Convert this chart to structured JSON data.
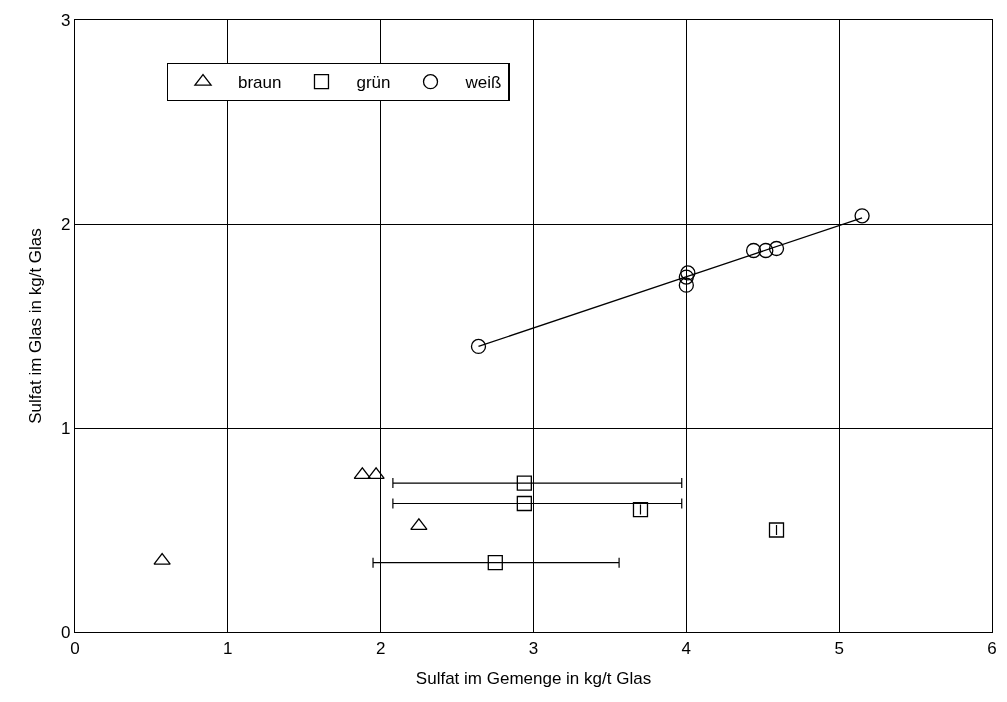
{
  "chart_data": {
    "type": "scatter",
    "xlabel": "Sulfat im Gemenge in kg/t Glas",
    "ylabel": "Sulfat im Glas in kg/t Glas",
    "xlim": [
      0,
      6
    ],
    "ylim": [
      0,
      3
    ],
    "xticks": [
      0,
      1,
      2,
      3,
      4,
      5,
      6
    ],
    "yticks": [
      0,
      1,
      2,
      3
    ],
    "grid": true,
    "legend": "top left",
    "series": [
      {
        "name": "braun",
        "color": "#000000",
        "marker": "triangle",
        "x": [
          0.57,
          1.88,
          1.97,
          2.25
        ],
        "values": [
          0.35,
          0.77,
          0.77,
          0.52
        ]
      },
      {
        "name": "grün",
        "color": "#000000",
        "marker": "square",
        "x": [
          2.94,
          2.94,
          3.7,
          4.59,
          2.75
        ],
        "values": [
          0.73,
          0.63,
          0.6,
          0.5,
          0.34
        ],
        "xerrors": [
          [
            2.08,
            3.97
          ],
          [
            2.08,
            3.97
          ],
          null,
          null,
          [
            1.95,
            3.56
          ]
        ]
      },
      {
        "name": "weiß",
        "color": "#000000",
        "marker": "circle",
        "x": [
          2.64,
          4.0,
          4.0,
          4.01,
          4.44,
          4.52,
          4.59,
          5.15
        ],
        "values": [
          1.4,
          1.7,
          1.74,
          1.76,
          1.87,
          1.87,
          1.88,
          2.04
        ]
      },
      {
        "type": "line",
        "color": "#000000",
        "x": [
          2.64,
          5.15
        ],
        "values": [
          1.4,
          2.03
        ]
      }
    ]
  }
}
